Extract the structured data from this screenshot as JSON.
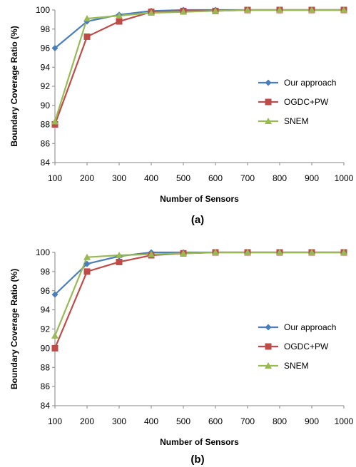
{
  "chart_data": [
    {
      "type": "line",
      "caption": "(a)",
      "xlabel": "Number of Sensors",
      "ylabel": "Boundary Coverage Ratio (%)",
      "x": [
        100,
        200,
        300,
        400,
        500,
        600,
        700,
        800,
        900,
        1000
      ],
      "ylim": [
        84,
        100
      ],
      "yticks": [
        84,
        86,
        88,
        90,
        92,
        94,
        96,
        98,
        100
      ],
      "grid": false,
      "legend_position": "right",
      "series": [
        {
          "name": "Our approach",
          "color": "#4a7ebb",
          "marker": "diamond",
          "values": [
            96.0,
            98.8,
            99.5,
            99.9,
            100,
            100,
            100,
            100,
            100,
            100
          ]
        },
        {
          "name": "OGDC+PW",
          "color": "#be4b48",
          "marker": "square",
          "values": [
            88.0,
            97.2,
            98.8,
            99.8,
            99.9,
            99.9,
            100,
            100,
            100,
            100
          ]
        },
        {
          "name": "SNEM",
          "color": "#98b954",
          "marker": "triangle",
          "values": [
            88.3,
            99.1,
            99.4,
            99.7,
            99.8,
            99.9,
            100,
            100,
            100,
            100
          ]
        }
      ]
    },
    {
      "type": "line",
      "caption": "(b)",
      "xlabel": "Number of Sensors",
      "ylabel": "Boundary Coverage Ratio (%)",
      "x": [
        100,
        200,
        300,
        400,
        500,
        600,
        700,
        800,
        900,
        1000
      ],
      "ylim": [
        84,
        100
      ],
      "yticks": [
        84,
        86,
        88,
        90,
        92,
        94,
        96,
        98,
        100
      ],
      "grid": false,
      "legend_position": "right",
      "series": [
        {
          "name": "Our approach",
          "color": "#4a7ebb",
          "marker": "diamond",
          "values": [
            95.6,
            98.8,
            99.6,
            100,
            100,
            100,
            100,
            100,
            100,
            100
          ]
        },
        {
          "name": "OGDC+PW",
          "color": "#be4b48",
          "marker": "square",
          "values": [
            90.0,
            98.0,
            99.0,
            99.7,
            99.9,
            100,
            100,
            100,
            100,
            100
          ]
        },
        {
          "name": "SNEM",
          "color": "#98b954",
          "marker": "triangle",
          "values": [
            91.3,
            99.5,
            99.7,
            99.8,
            99.9,
            100,
            100,
            100,
            100,
            100
          ]
        }
      ]
    }
  ]
}
